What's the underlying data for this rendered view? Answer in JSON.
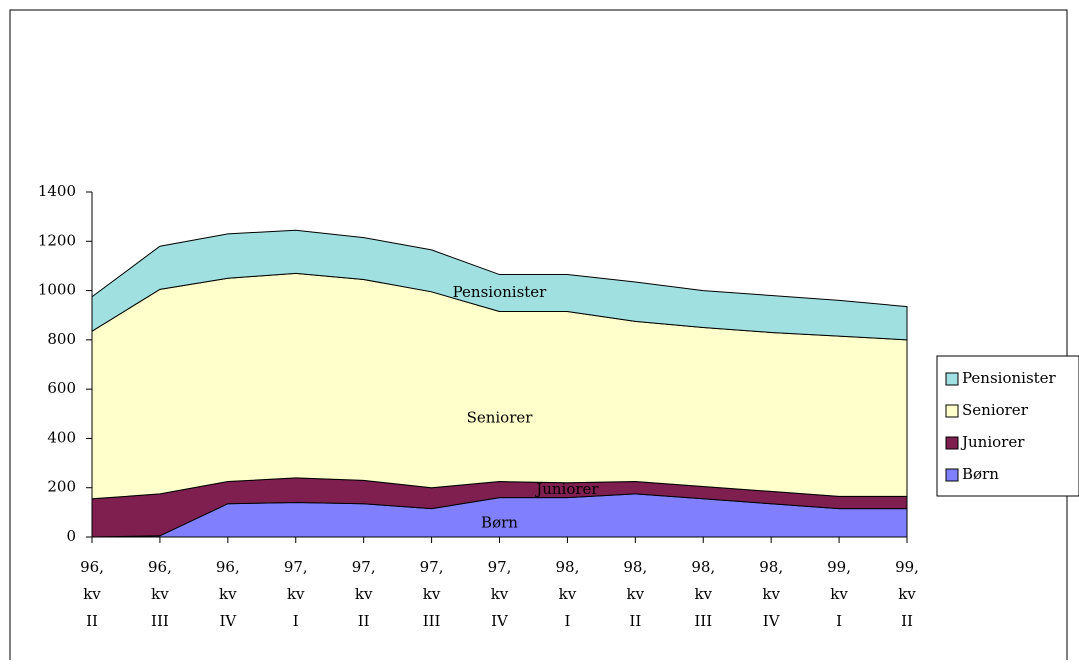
{
  "chart_data": {
    "type": "stacked_area",
    "categories": [
      [
        "96,",
        "kv",
        "II"
      ],
      [
        "96,",
        "kv",
        "III"
      ],
      [
        "96,",
        "kv",
        "IV"
      ],
      [
        "97,",
        "kv",
        "I"
      ],
      [
        "97,",
        "kv",
        "II"
      ],
      [
        "97,",
        "kv",
        "III"
      ],
      [
        "97,",
        "kv",
        "IV"
      ],
      [
        "98,",
        "kv",
        "I"
      ],
      [
        "98,",
        "kv",
        "II"
      ],
      [
        "98,",
        "kv",
        "III"
      ],
      [
        "98,",
        "kv",
        "IV"
      ],
      [
        "99,",
        "kv",
        "I"
      ],
      [
        "99,",
        "kv",
        "II"
      ]
    ],
    "series": [
      {
        "name": "Børn",
        "color": "#8080ff",
        "values": [
          0,
          5,
          135,
          140,
          135,
          115,
          160,
          160,
          175,
          155,
          135,
          115,
          115
        ]
      },
      {
        "name": "Juniorer",
        "color": "#7f1f4f",
        "values": [
          155,
          170,
          90,
          100,
          95,
          85,
          65,
          60,
          50,
          50,
          50,
          50,
          50
        ]
      },
      {
        "name": "Seniorer",
        "color": "#ffffcc",
        "values": [
          680,
          830,
          825,
          830,
          815,
          795,
          690,
          695,
          650,
          645,
          645,
          650,
          635
        ]
      },
      {
        "name": "Pensionister",
        "color": "#a0e0e0",
        "values": [
          140,
          175,
          180,
          175,
          170,
          170,
          150,
          150,
          160,
          150,
          150,
          145,
          135
        ]
      }
    ],
    "ylim": [
      0,
      1400
    ],
    "yticks": [
      0,
      200,
      400,
      600,
      800,
      1000,
      1200,
      1400
    ],
    "legend": "right"
  }
}
